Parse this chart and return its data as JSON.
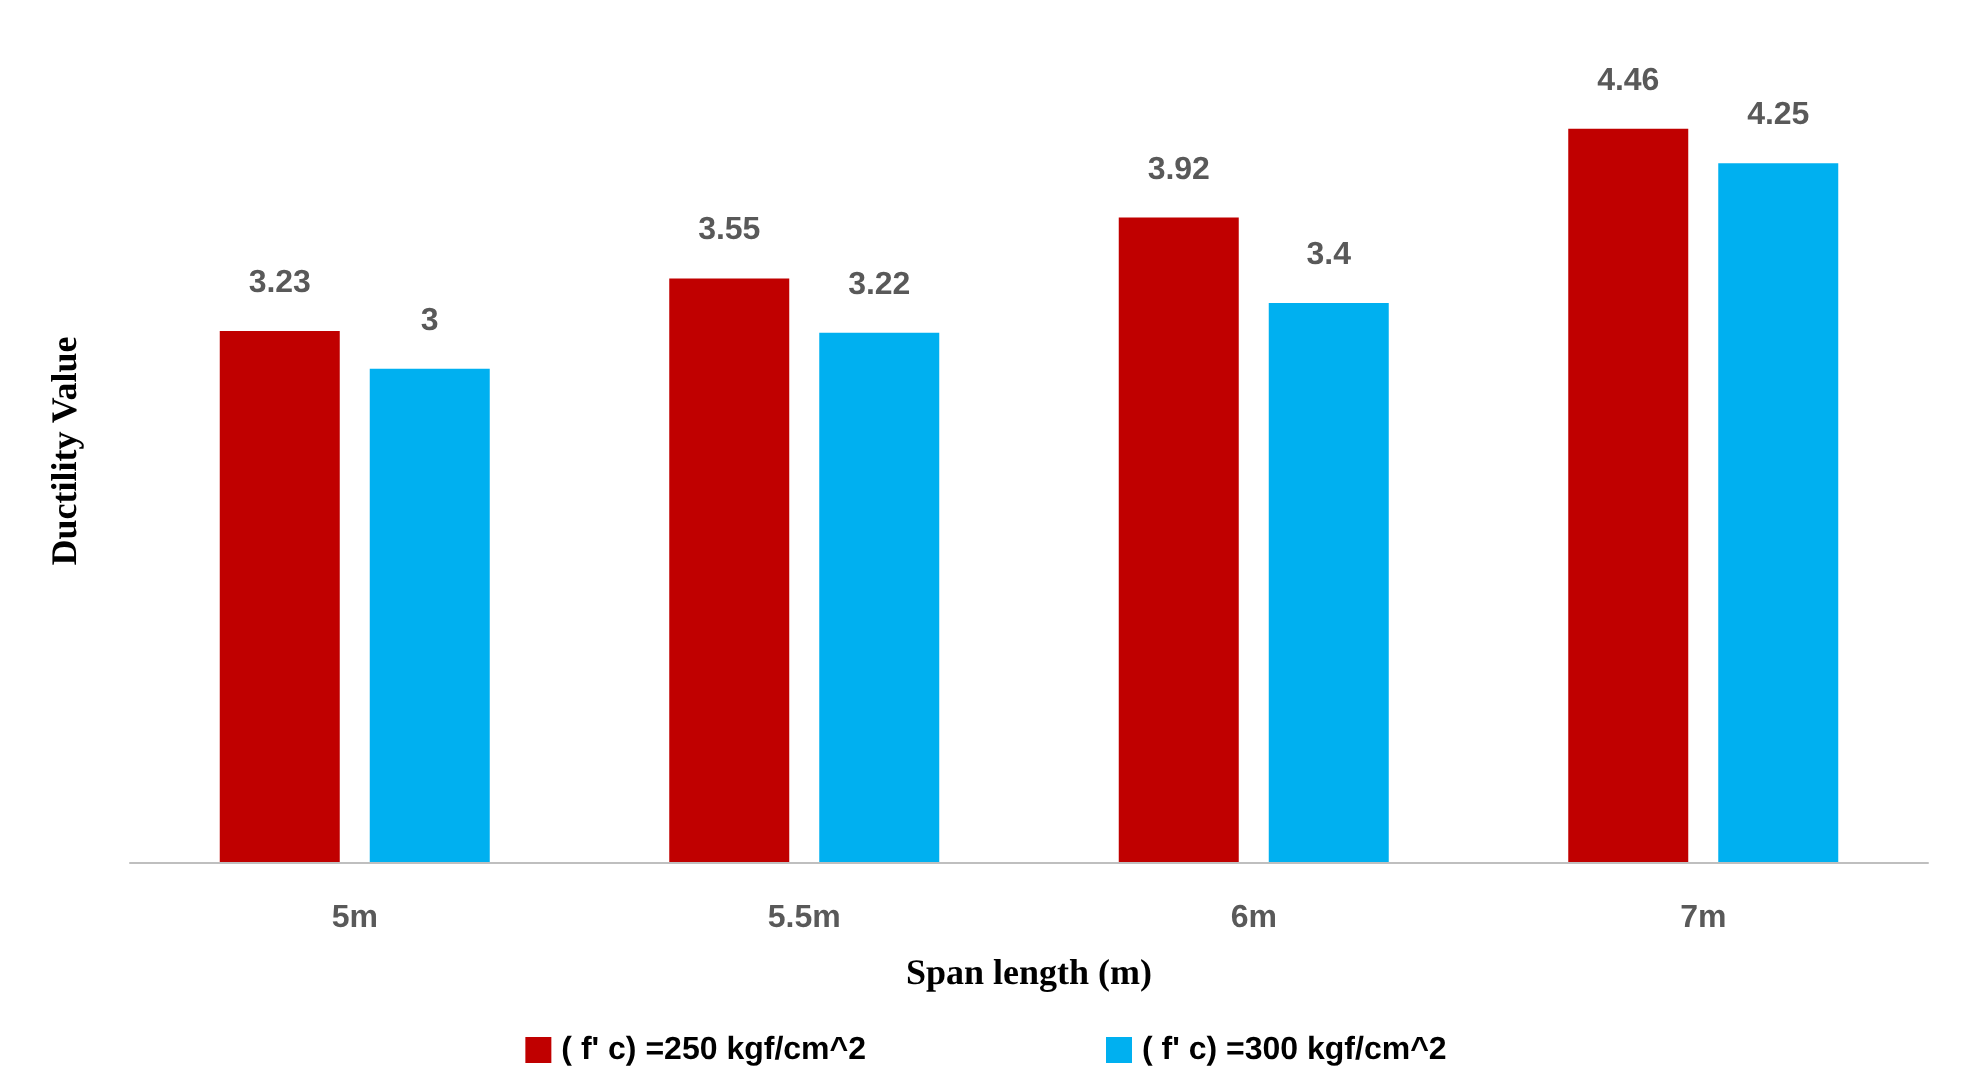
{
  "chart_data": {
    "type": "bar",
    "xlabel": "Span length (m)",
    "ylabel": "Ductility Value",
    "categories": [
      "5m",
      "5.5m",
      "6m",
      "7m"
    ],
    "series": [
      {
        "name": "( f' c) =250 kgf/cm^2",
        "color": "#c00000",
        "values": [
          3.23,
          3.55,
          3.92,
          4.46
        ]
      },
      {
        "name": "( f' c) =300 kgf/cm^2",
        "color": "#00b0f0",
        "values": [
          3,
          3.22,
          3.4,
          4.25
        ]
      }
    ],
    "data_labels": true,
    "legend": "bottom",
    "grid": false
  }
}
